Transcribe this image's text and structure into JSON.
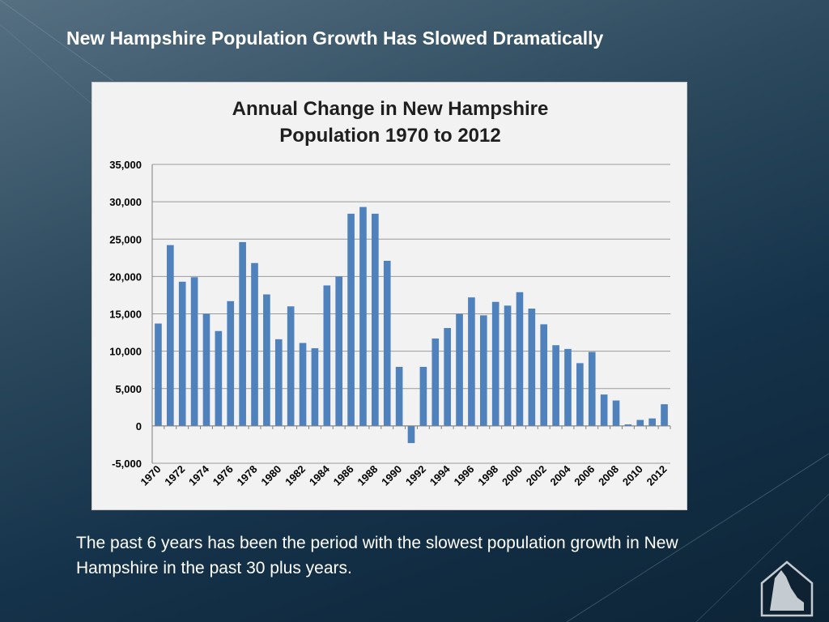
{
  "slide": {
    "title": "New Hampshire Population Growth Has Slowed Dramatically",
    "caption": "The past 6 years has been the period with the slowest population growth in New Hampshire in the past 30 plus years."
  },
  "logo": {
    "icon": "new-hampshire-state-outline-icon"
  },
  "chart_data": {
    "type": "bar",
    "title_lines": [
      "Annual Change in New Hampshire",
      "Population 1970 to 2012"
    ],
    "categories": [
      "1970",
      "1971",
      "1972",
      "1973",
      "1974",
      "1975",
      "1976",
      "1977",
      "1978",
      "1979",
      "1980",
      "1981",
      "1982",
      "1983",
      "1984",
      "1985",
      "1986",
      "1987",
      "1988",
      "1989",
      "1990",
      "1991",
      "1992",
      "1993",
      "1994",
      "1995",
      "1996",
      "1997",
      "1998",
      "1999",
      "2000",
      "2001",
      "2002",
      "2003",
      "2004",
      "2005",
      "2006",
      "2007",
      "2008",
      "2009",
      "2010",
      "2011",
      "2012"
    ],
    "values": [
      13700,
      24200,
      19300,
      19900,
      15000,
      12700,
      16700,
      24600,
      21800,
      17600,
      11600,
      16000,
      11100,
      10400,
      18800,
      20000,
      28400,
      29300,
      28400,
      22100,
      7900,
      -2300,
      7900,
      11700,
      13100,
      15000,
      17200,
      14800,
      16600,
      16100,
      17900,
      15700,
      13600,
      10800,
      10300,
      8400,
      9900,
      4200,
      3400,
      200,
      800,
      1000,
      2900
    ],
    "y_ticks": [
      "35,000",
      "30,000",
      "25,000",
      "20,000",
      "15,000",
      "10,000",
      "5,000",
      "0",
      "-5,000"
    ],
    "x_tick_labels": [
      "1970",
      "1972",
      "1974",
      "1976",
      "1978",
      "1980",
      "1982",
      "1984",
      "1986",
      "1988",
      "1990",
      "1992",
      "1994",
      "1996",
      "1998",
      "2000",
      "2002",
      "2004",
      "2006",
      "2008",
      "2010",
      "2012"
    ],
    "ylim": [
      -5000,
      35000
    ],
    "grid": true,
    "bar_color": "#4f81bd",
    "xlabel": "",
    "ylabel": ""
  }
}
